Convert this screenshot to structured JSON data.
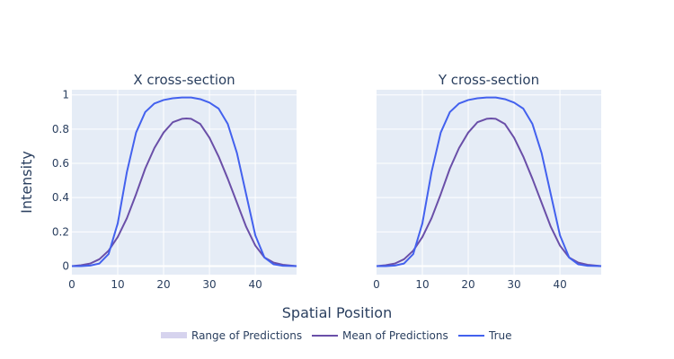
{
  "chart_data": [
    {
      "type": "line",
      "title": "X cross-section",
      "xlim": [
        0,
        49
      ],
      "ylim": [
        -0.05,
        1.03
      ],
      "xticks": [
        "0",
        "10",
        "20",
        "30",
        "40"
      ],
      "yticks": [
        "0",
        "0.2",
        "0.4",
        "0.6",
        "0.8",
        "1"
      ],
      "show_yticklabels": true,
      "x": [
        0,
        2,
        4,
        6,
        8,
        10,
        12,
        14,
        16,
        18,
        20,
        22,
        24,
        25,
        26,
        28,
        30,
        32,
        34,
        36,
        38,
        40,
        42,
        44,
        46,
        49
      ],
      "series": [
        {
          "name": "Mean of Predictions",
          "color": "#6a4fa8",
          "values": [
            0.0,
            0.005,
            0.015,
            0.04,
            0.09,
            0.17,
            0.28,
            0.42,
            0.57,
            0.69,
            0.78,
            0.84,
            0.86,
            0.862,
            0.86,
            0.83,
            0.75,
            0.64,
            0.51,
            0.37,
            0.23,
            0.12,
            0.05,
            0.02,
            0.008,
            0.0
          ]
        },
        {
          "name": "True",
          "color": "#4361ee",
          "values": [
            0.0,
            0.0,
            0.003,
            0.015,
            0.07,
            0.25,
            0.55,
            0.78,
            0.9,
            0.95,
            0.97,
            0.98,
            0.985,
            0.985,
            0.985,
            0.975,
            0.955,
            0.92,
            0.83,
            0.66,
            0.42,
            0.18,
            0.05,
            0.01,
            0.002,
            0.0
          ]
        }
      ]
    },
    {
      "type": "line",
      "title": "Y cross-section",
      "xlim": [
        0,
        49
      ],
      "ylim": [
        -0.05,
        1.03
      ],
      "xticks": [
        "0",
        "10",
        "20",
        "30",
        "40"
      ],
      "yticks": [
        "0",
        "0.2",
        "0.4",
        "0.6",
        "0.8",
        "1"
      ],
      "show_yticklabels": false,
      "x": [
        0,
        2,
        4,
        6,
        8,
        10,
        12,
        14,
        16,
        18,
        20,
        22,
        24,
        25,
        26,
        28,
        30,
        32,
        34,
        36,
        38,
        40,
        42,
        44,
        46,
        49
      ],
      "series": [
        {
          "name": "Mean of Predictions",
          "color": "#6a4fa8",
          "values": [
            0.0,
            0.005,
            0.015,
            0.04,
            0.09,
            0.17,
            0.28,
            0.42,
            0.57,
            0.69,
            0.78,
            0.84,
            0.86,
            0.862,
            0.86,
            0.83,
            0.75,
            0.64,
            0.51,
            0.37,
            0.23,
            0.12,
            0.05,
            0.02,
            0.008,
            0.0
          ]
        },
        {
          "name": "True",
          "color": "#4361ee",
          "values": [
            0.0,
            0.0,
            0.003,
            0.015,
            0.07,
            0.25,
            0.55,
            0.78,
            0.9,
            0.95,
            0.97,
            0.98,
            0.985,
            0.985,
            0.985,
            0.975,
            0.955,
            0.92,
            0.83,
            0.66,
            0.42,
            0.18,
            0.05,
            0.01,
            0.002,
            0.0
          ]
        }
      ]
    }
  ],
  "shared": {
    "ylabel": "Intensity",
    "xlabel": "Spatial Position"
  },
  "legend": {
    "position": "bottom-center",
    "items": [
      {
        "label": "Range of Predictions",
        "color": "#d6d3ee",
        "kind": "band"
      },
      {
        "label": "Mean of Predictions",
        "color": "#6a4fa8",
        "kind": "line"
      },
      {
        "label": "True",
        "color": "#4361ee",
        "kind": "line"
      }
    ]
  },
  "colors": {
    "plot_bg": "#e5ecf6",
    "grid": "#ffffff"
  }
}
